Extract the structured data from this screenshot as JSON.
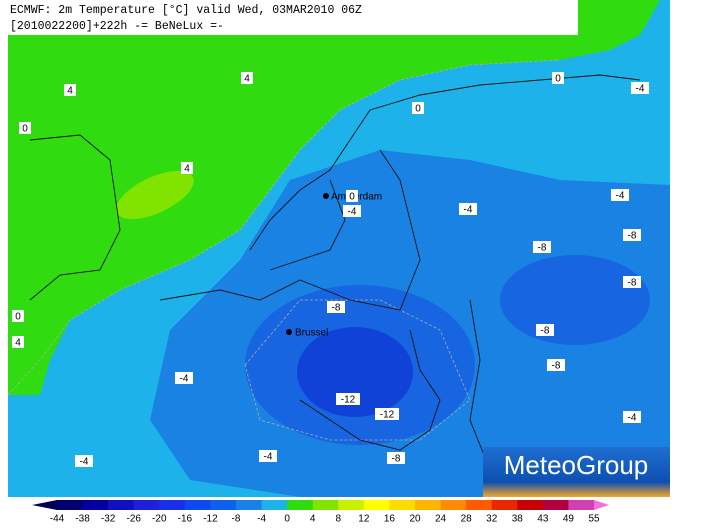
{
  "header": {
    "line1": "ECMWF: 2m Temperature [°C] valid Wed, 03MAR2010 06Z",
    "line2": "[2010022200]+222h  -= BeNeLux =-"
  },
  "places": [
    {
      "label": "Amsterdam"
    },
    {
      "label": "Brussel"
    }
  ],
  "contour_labels": [
    "4",
    "4",
    "4",
    "0",
    "0",
    "0",
    "0",
    "-4",
    "-4",
    "-4",
    "-4",
    "-8",
    "-8",
    "-8",
    "-8",
    "-8",
    "-8",
    "0",
    "4",
    "-4",
    "-12",
    "-12",
    "-4",
    "-4",
    "-8",
    "-4"
  ],
  "colorbar": {
    "labels": [
      "-44",
      "-38",
      "-32",
      "-26",
      "-20",
      "-16",
      "-12",
      "-8",
      "-4",
      "0",
      "4",
      "8",
      "12",
      "16",
      "20",
      "24",
      "28",
      "32",
      "38",
      "43",
      "49",
      "55"
    ]
  },
  "logo": "MeteoGroup"
}
